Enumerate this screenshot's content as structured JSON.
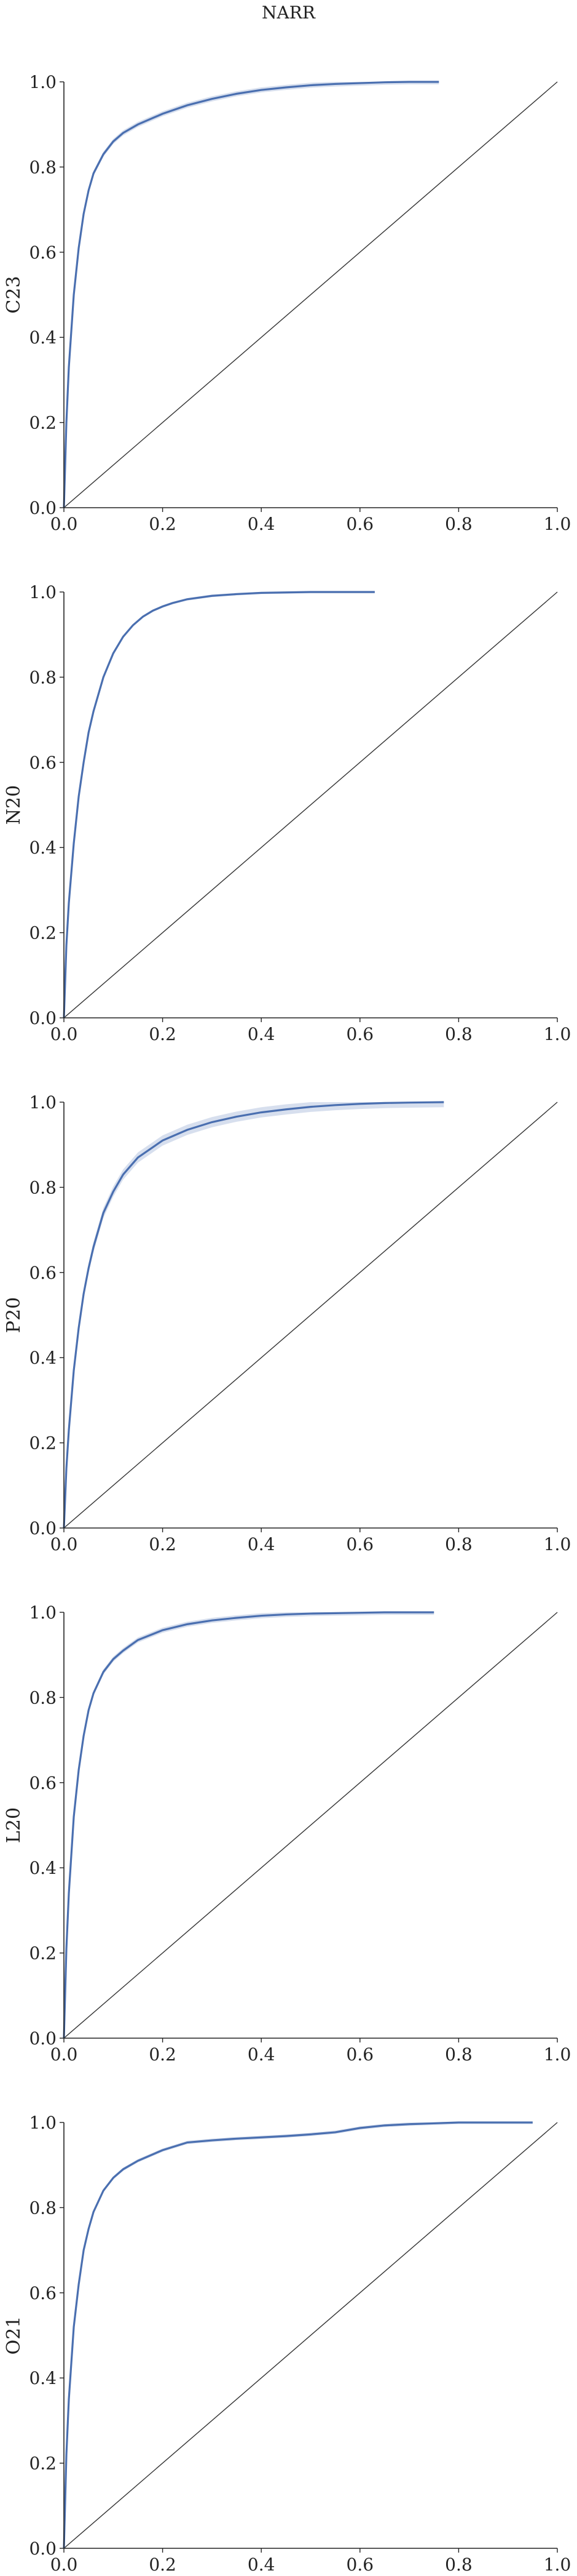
{
  "title": "NARR",
  "colors": {
    "curve": "#4a6fb0",
    "diagonal": "#333333",
    "axis": "#222222"
  },
  "chart_data": [
    {
      "type": "line",
      "ylabel": "C23",
      "xlim": [
        0,
        1
      ],
      "ylim": [
        0,
        1
      ],
      "grid": false,
      "xticks": [
        "0.0",
        "0.2",
        "0.4",
        "0.6",
        "0.8",
        "1.0"
      ],
      "yticks": [
        "0.0",
        "0.2",
        "0.4",
        "0.6",
        "0.8",
        "1.0"
      ],
      "series": [
        {
          "x": [
            0,
            0.005,
            0.01,
            0.02,
            0.03,
            0.04,
            0.05,
            0.06,
            0.08,
            0.1,
            0.12,
            0.15,
            0.2,
            0.25,
            0.3,
            0.35,
            0.4,
            0.45,
            0.5,
            0.55,
            0.6,
            0.65,
            0.7,
            0.76
          ],
          "y": [
            0,
            0.2,
            0.33,
            0.5,
            0.61,
            0.69,
            0.745,
            0.785,
            0.83,
            0.86,
            0.88,
            0.9,
            0.925,
            0.945,
            0.96,
            0.972,
            0.981,
            0.987,
            0.992,
            0.995,
            0.997,
            0.999,
            1.0,
            1.0
          ],
          "band": 0.006
        }
      ],
      "reference_line": {
        "x": [
          0,
          1
        ],
        "y": [
          0,
          1
        ]
      }
    },
    {
      "type": "line",
      "ylabel": "N20",
      "xlim": [
        0,
        1
      ],
      "ylim": [
        0,
        1
      ],
      "grid": false,
      "xticks": [
        "0.0",
        "0.2",
        "0.4",
        "0.6",
        "0.8",
        "1.0"
      ],
      "yticks": [
        "0.0",
        "0.2",
        "0.4",
        "0.6",
        "0.8",
        "1.0"
      ],
      "series": [
        {
          "x": [
            0,
            0.005,
            0.01,
            0.02,
            0.03,
            0.04,
            0.05,
            0.06,
            0.08,
            0.1,
            0.12,
            0.14,
            0.16,
            0.18,
            0.2,
            0.22,
            0.25,
            0.3,
            0.35,
            0.4,
            0.5,
            0.63
          ],
          "y": [
            0,
            0.17,
            0.27,
            0.41,
            0.52,
            0.6,
            0.67,
            0.72,
            0.8,
            0.856,
            0.895,
            0.922,
            0.942,
            0.956,
            0.966,
            0.974,
            0.983,
            0.991,
            0.995,
            0.998,
            1.0,
            1.0
          ],
          "band": 0.003
        }
      ],
      "reference_line": {
        "x": [
          0,
          1
        ],
        "y": [
          0,
          1
        ]
      }
    },
    {
      "type": "line",
      "ylabel": "P20",
      "xlim": [
        0,
        1
      ],
      "ylim": [
        0,
        1
      ],
      "grid": false,
      "xticks": [
        "0.0",
        "0.2",
        "0.4",
        "0.6",
        "0.8",
        "1.0"
      ],
      "yticks": [
        "0.0",
        "0.2",
        "0.4",
        "0.6",
        "0.8",
        "1.0"
      ],
      "series": [
        {
          "x": [
            0,
            0.005,
            0.01,
            0.02,
            0.03,
            0.04,
            0.05,
            0.06,
            0.08,
            0.1,
            0.12,
            0.15,
            0.2,
            0.25,
            0.3,
            0.35,
            0.4,
            0.45,
            0.5,
            0.55,
            0.6,
            0.65,
            0.7,
            0.77
          ],
          "y": [
            0,
            0.14,
            0.23,
            0.37,
            0.47,
            0.55,
            0.61,
            0.66,
            0.74,
            0.79,
            0.83,
            0.87,
            0.91,
            0.935,
            0.953,
            0.966,
            0.976,
            0.983,
            0.989,
            0.993,
            0.996,
            0.998,
            0.999,
            1.0
          ],
          "band": 0.012
        }
      ],
      "reference_line": {
        "x": [
          0,
          1
        ],
        "y": [
          0,
          1
        ]
      }
    },
    {
      "type": "line",
      "ylabel": "L20",
      "xlim": [
        0,
        1
      ],
      "ylim": [
        0,
        1
      ],
      "grid": false,
      "xticks": [
        "0.0",
        "0.2",
        "0.4",
        "0.6",
        "0.8",
        "1.0"
      ],
      "yticks": [
        "0.0",
        "0.2",
        "0.4",
        "0.6",
        "0.8",
        "1.0"
      ],
      "series": [
        {
          "x": [
            0,
            0.005,
            0.01,
            0.02,
            0.03,
            0.04,
            0.05,
            0.06,
            0.08,
            0.1,
            0.12,
            0.15,
            0.2,
            0.25,
            0.3,
            0.35,
            0.4,
            0.45,
            0.5,
            0.55,
            0.6,
            0.65,
            0.75
          ],
          "y": [
            0,
            0.21,
            0.34,
            0.52,
            0.63,
            0.71,
            0.77,
            0.81,
            0.86,
            0.89,
            0.91,
            0.935,
            0.958,
            0.972,
            0.981,
            0.987,
            0.992,
            0.995,
            0.997,
            0.998,
            0.999,
            1.0,
            1.0
          ],
          "band": 0.006
        }
      ],
      "reference_line": {
        "x": [
          0,
          1
        ],
        "y": [
          0,
          1
        ]
      }
    },
    {
      "type": "line",
      "ylabel": "O21",
      "xlim": [
        0,
        1
      ],
      "ylim": [
        0,
        1
      ],
      "grid": false,
      "xticks": [
        "0.0",
        "0.2",
        "0.4",
        "0.6",
        "0.8",
        "1.0"
      ],
      "yticks": [
        "0.0",
        "0.2",
        "0.4",
        "0.6",
        "0.8",
        "1.0"
      ],
      "series": [
        {
          "x": [
            0,
            0.005,
            0.01,
            0.02,
            0.03,
            0.04,
            0.05,
            0.06,
            0.08,
            0.1,
            0.12,
            0.15,
            0.2,
            0.25,
            0.3,
            0.35,
            0.4,
            0.45,
            0.5,
            0.55,
            0.6,
            0.65,
            0.7,
            0.8,
            0.95
          ],
          "y": [
            0,
            0.22,
            0.35,
            0.52,
            0.62,
            0.7,
            0.75,
            0.79,
            0.84,
            0.87,
            0.89,
            0.91,
            0.935,
            0.953,
            0.958,
            0.962,
            0.965,
            0.968,
            0.972,
            0.977,
            0.987,
            0.993,
            0.996,
            1.0,
            1.0
          ],
          "band": 0.004
        }
      ],
      "reference_line": {
        "x": [
          0,
          1
        ],
        "y": [
          0,
          1
        ]
      }
    }
  ]
}
